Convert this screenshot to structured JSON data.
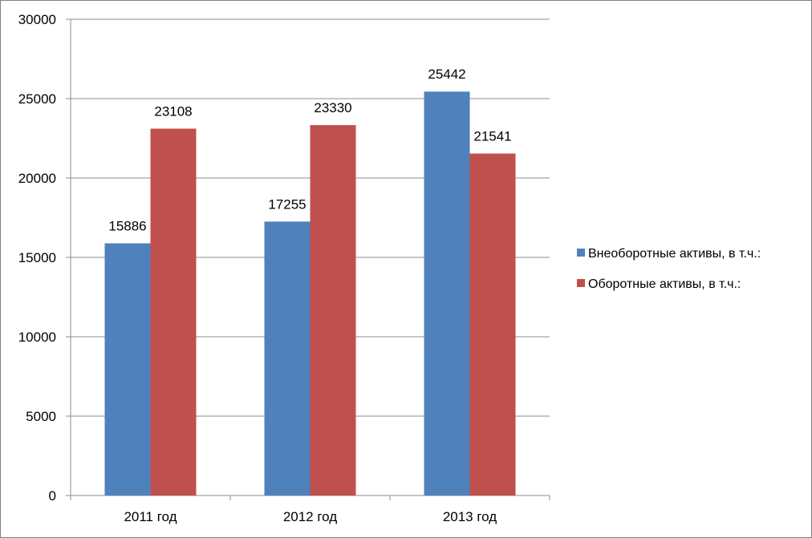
{
  "chart_data": {
    "type": "bar",
    "title": "",
    "xlabel": "",
    "ylabel": "",
    "categories": [
      "2011 год",
      "2012 год",
      "2013 год"
    ],
    "series": [
      {
        "name": "Внеоборотные активы, в т.ч.:",
        "color": "#4f81bd",
        "values": [
          15886,
          17255,
          25442
        ]
      },
      {
        "name": "Оборотные активы, в т.ч.:",
        "color": "#c0504d",
        "values": [
          23108,
          23330,
          21541
        ]
      }
    ],
    "ylim": [
      0,
      30000
    ],
    "yticks": [
      0,
      5000,
      10000,
      15000,
      20000,
      25000,
      30000
    ],
    "grid": true,
    "legend_position": "right",
    "data_labels": true
  }
}
